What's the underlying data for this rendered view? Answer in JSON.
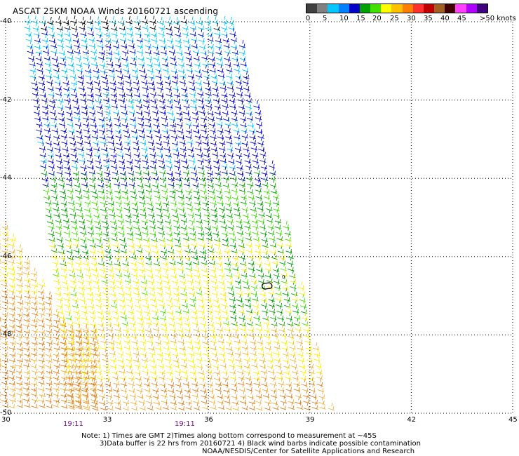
{
  "title": "ASCAT 25KM NOAA Winds 20160721 ascending",
  "colorbar": {
    "colors": [
      "#404040",
      "#808080",
      "#00c8ff",
      "#0080ff",
      "#0000c8",
      "#00a000",
      "#40e000",
      "#ffff00",
      "#ffc000",
      "#ff8000",
      "#ff3030",
      "#c00000",
      "#a06020",
      "#400000",
      "#ff40ff",
      "#b000ff",
      "#400080"
    ],
    "labels": [
      "0",
      "5",
      "10",
      "15",
      "20",
      "25",
      "30",
      "35",
      "40",
      "45",
      ">50 knots"
    ]
  },
  "map": {
    "lat_labels": [
      "-40",
      "-42",
      "-44",
      "-46",
      "-48",
      "-50"
    ],
    "lon_labels": [
      "30",
      "33",
      "36",
      "39",
      "42",
      "45"
    ],
    "time_labels": [
      "19:11",
      "19:11"
    ],
    "grid": "dotted",
    "wind_colors": {
      "black": "#000000",
      "light_cyan": "#00c8ff",
      "blue": "#0000c8",
      "green": "#00a000",
      "light_green": "#40e000",
      "yellow": "#ffee00",
      "light_orange": "#f0b040",
      "orange": "#e08020"
    }
  },
  "notes": {
    "line1": "Note: 1) Times are GMT 2)Times along bottom correspond to measurement at ~45S",
    "line2": "3)Data buffer is 22 hrs from 20160721 4) Black wind barbs indicate possible contamination",
    "line3": "NOAA/NESDIS/Center for Satellite Applications and Research"
  }
}
